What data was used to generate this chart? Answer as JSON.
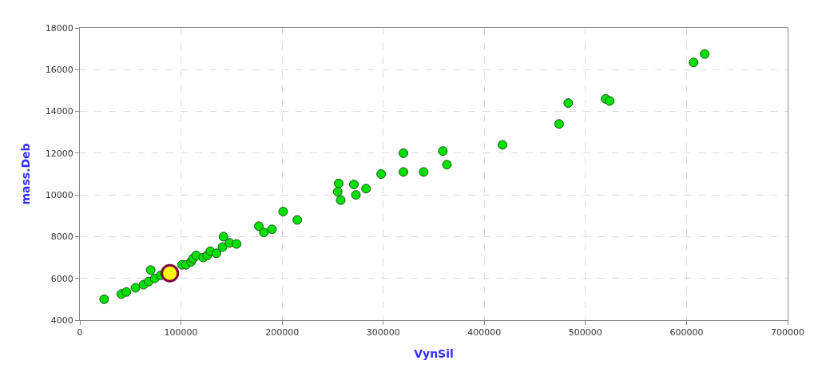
{
  "chart_data": {
    "type": "scatter",
    "xlabel": "VynSil",
    "ylabel": "mass.Deb",
    "xlim": [
      0,
      700000
    ],
    "ylim": [
      4000,
      18000
    ],
    "xticks": [
      0,
      100000,
      200000,
      300000,
      400000,
      500000,
      600000,
      700000
    ],
    "yticks": [
      4000,
      6000,
      8000,
      10000,
      12000,
      14000,
      16000,
      18000
    ],
    "grid": true,
    "marker": "circle",
    "series": [
      {
        "color": "#00e000",
        "x": [
          24000,
          41000,
          46000,
          55000,
          63000,
          70000,
          68000,
          74000,
          80000,
          86000,
          92000,
          97000,
          101000,
          105000,
          110000,
          112000,
          115000,
          120000,
          122000,
          126000,
          129000,
          135000,
          141000,
          142000,
          148000,
          155000,
          177000,
          182000,
          190000,
          201000,
          215000,
          256000,
          255000,
          258000,
          271000,
          273000,
          283000,
          298000,
          320000,
          320000,
          340000,
          359000,
          363000,
          418000,
          474000,
          483000,
          520000,
          524000,
          607000,
          618000
        ],
        "values": [
          5000,
          5250,
          5350,
          5550,
          5700,
          6400,
          5850,
          6000,
          6150,
          null,
          null,
          null,
          6650,
          6650,
          6800,
          6950,
          7100,
          null,
          7000,
          7100,
          7300,
          7200,
          7500,
          8000,
          7700,
          7650,
          8500,
          8200,
          8350,
          9200,
          8800,
          10550,
          10150,
          9750,
          10500,
          10000,
          10300,
          11000,
          12000,
          11100,
          11100,
          12100,
          11450,
          12400,
          13400,
          14400,
          14600,
          14500,
          16350,
          16750
        ]
      },
      {
        "color": "#ffff00",
        "x": [
          89000
        ],
        "values": [
          6250
        ]
      }
    ]
  }
}
